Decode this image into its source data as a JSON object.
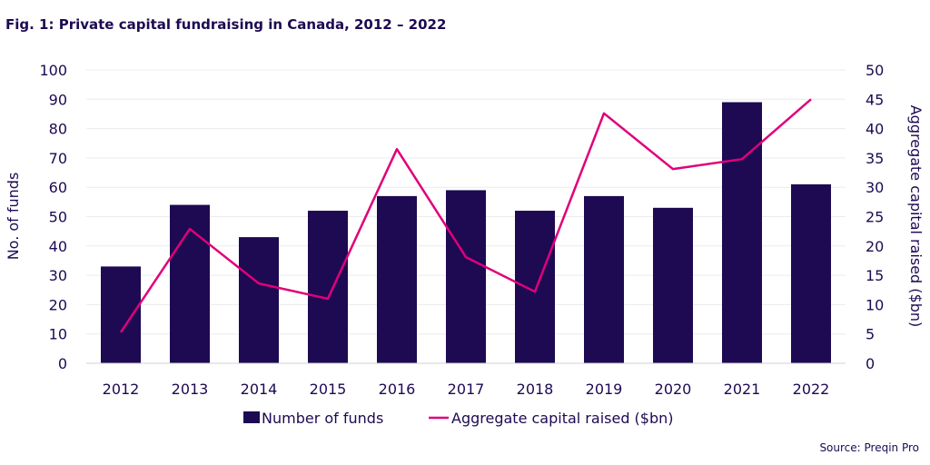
{
  "title": "Fig. 1: Private capital fundraising in Canada, 2012 – 2022",
  "source": "Source: Preqin Pro",
  "chart_data": {
    "type": "bar",
    "categories": [
      "2012",
      "2013",
      "2014",
      "2015",
      "2016",
      "2017",
      "2018",
      "2019",
      "2020",
      "2021",
      "2022"
    ],
    "series": [
      {
        "name": "Number of funds",
        "type": "bar",
        "axis": "left",
        "color": "#1d0a52",
        "values": [
          33,
          54,
          43,
          52,
          57,
          59,
          52,
          57,
          53,
          89,
          61
        ]
      },
      {
        "name": "Aggregate capital raised ($bn)",
        "type": "line",
        "axis": "right",
        "color": "#e0007a",
        "values": [
          5.3,
          22.9,
          13.6,
          11.0,
          36.5,
          18.1,
          12.2,
          42.6,
          33.1,
          34.8,
          45.0
        ]
      }
    ],
    "ylabel": "No. of funds",
    "ylabel_right": "Aggregate capital raised ($bn)",
    "ylim": [
      0,
      100
    ],
    "ylim_right": [
      0,
      50
    ],
    "yticks": [
      "0",
      "10",
      "20",
      "30",
      "40",
      "50",
      "60",
      "70",
      "80",
      "90",
      "100"
    ],
    "yticks_right": [
      "0",
      "5",
      "10",
      "15",
      "20",
      "25",
      "30",
      "35",
      "40",
      "45",
      "50"
    ],
    "grid": true,
    "legend": "bottom"
  }
}
